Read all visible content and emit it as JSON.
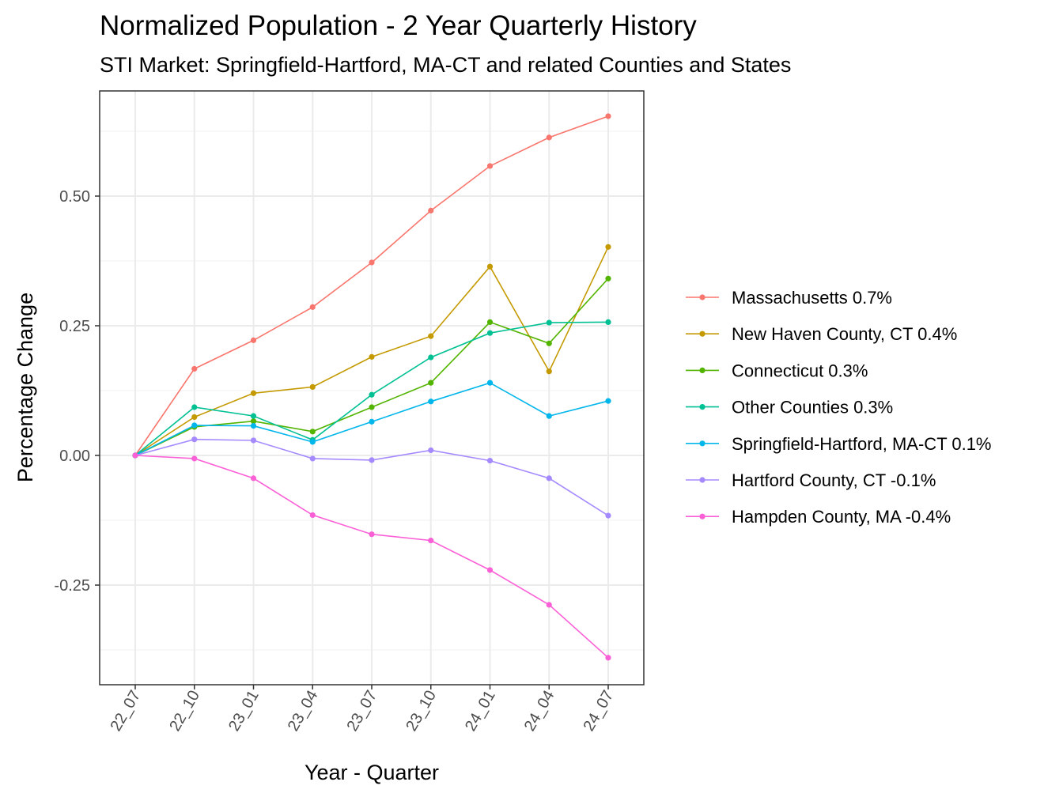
{
  "chart_data": {
    "type": "line",
    "title": "Normalized Population - 2 Year Quarterly History",
    "subtitle": "STI Market: Springfield-Hartford, MA-CT and related Counties and States",
    "xlabel": "Year - Quarter",
    "ylabel": "Percentage Change",
    "categories": [
      "22_07",
      "22_10",
      "23_01",
      "23_04",
      "23_07",
      "23_10",
      "24_01",
      "24_04",
      "24_07"
    ],
    "ylim": [
      -0.44,
      0.7
    ],
    "yticks": [
      -0.25,
      0.0,
      0.25,
      0.5
    ],
    "ytick_labels": [
      "-0.25",
      "0.00",
      "0.25",
      "0.50"
    ],
    "grid": true,
    "legend_position": "right",
    "series": [
      {
        "name": "Massachusetts 0.7%",
        "color": "#F8766D",
        "values": [
          0.0,
          0.167,
          0.222,
          0.286,
          0.372,
          0.472,
          0.558,
          0.613,
          0.654
        ]
      },
      {
        "name": "New Haven County, CT 0.4%",
        "color": "#C49A00",
        "values": [
          0.0,
          0.074,
          0.12,
          0.132,
          0.19,
          0.23,
          0.364,
          0.162,
          0.402
        ]
      },
      {
        "name": "Connecticut 0.3%",
        "color": "#53B400",
        "values": [
          0.0,
          0.055,
          0.066,
          0.046,
          0.093,
          0.14,
          0.257,
          0.216,
          0.341
        ]
      },
      {
        "name": "Other Counties 0.3%",
        "color": "#00C094",
        "values": [
          0.0,
          0.093,
          0.076,
          0.03,
          0.117,
          0.189,
          0.236,
          0.256,
          0.257
        ]
      },
      {
        "name": "Springfield-Hartford, MA-CT 0.1%",
        "color": "#00B6EB",
        "values": [
          0.0,
          0.058,
          0.057,
          0.026,
          0.065,
          0.104,
          0.14,
          0.076,
          0.105
        ]
      },
      {
        "name": "Hartford County, CT -0.1%",
        "color": "#A58AFF",
        "values": [
          0.0,
          0.031,
          0.029,
          -0.006,
          -0.009,
          0.01,
          -0.01,
          -0.044,
          -0.116
        ]
      },
      {
        "name": "Hampden County, MA -0.4%",
        "color": "#FB61D7",
        "values": [
          0.0,
          -0.006,
          -0.044,
          -0.115,
          -0.152,
          -0.164,
          -0.221,
          -0.288,
          -0.39
        ]
      }
    ]
  }
}
